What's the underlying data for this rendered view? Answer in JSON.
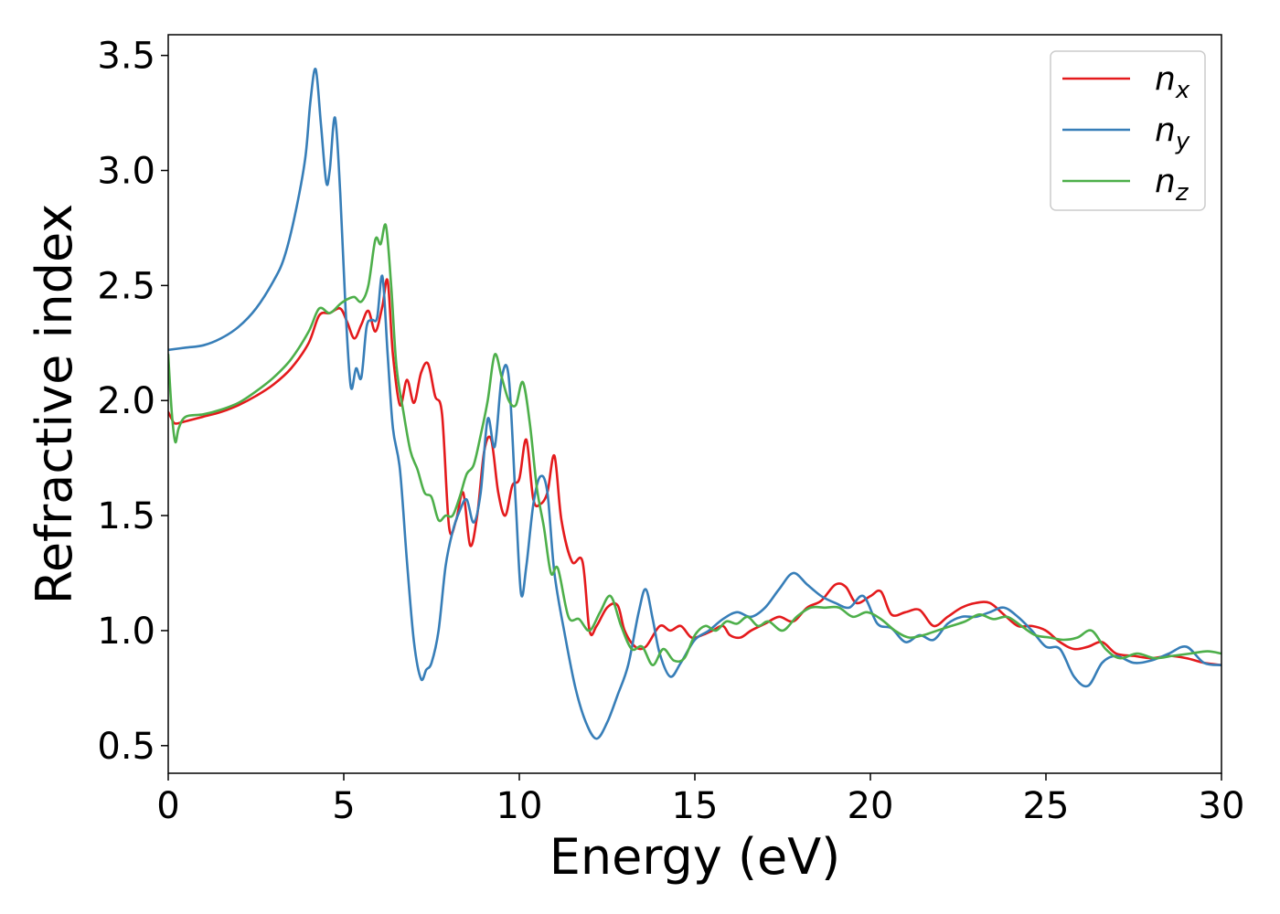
{
  "chart_data": {
    "type": "line",
    "title": "",
    "xlabel": "Energy (eV)",
    "ylabel": "Refractive index",
    "xlim": [
      0,
      30
    ],
    "ylim": [
      0.38,
      3.59
    ],
    "xticks": [
      0,
      5,
      10,
      15,
      20,
      25,
      30
    ],
    "xtick_labels": [
      "0",
      "5",
      "10",
      "15",
      "20",
      "25",
      "30"
    ],
    "yticks": [
      0.5,
      1.0,
      1.5,
      2.0,
      2.5,
      3.0,
      3.5
    ],
    "ytick_labels": [
      "0.5",
      "1.0",
      "1.5",
      "2.0",
      "2.5",
      "3.0",
      "3.5"
    ],
    "grid": false,
    "legend": "top-right",
    "series": [
      {
        "name": "n",
        "subscript": "x",
        "color": "#e41a1c",
        "x": [
          0,
          0.1,
          0.2,
          0.5,
          1,
          1.5,
          2,
          2.5,
          3,
          3.5,
          4,
          4.3,
          4.6,
          4.9,
          5.1,
          5.3,
          5.5,
          5.7,
          5.9,
          6.1,
          6.25,
          6.4,
          6.6,
          6.8,
          7.0,
          7.2,
          7.4,
          7.6,
          7.8,
          8.0,
          8.2,
          8.4,
          8.6,
          8.8,
          9.0,
          9.2,
          9.4,
          9.6,
          9.8,
          10.0,
          10.2,
          10.4,
          10.6,
          10.8,
          11.0,
          11.2,
          11.5,
          11.8,
          12.0,
          12.2,
          12.5,
          12.8,
          13.0,
          13.3,
          13.6,
          14.0,
          14.3,
          14.6,
          14.9,
          15.2,
          15.5,
          15.8,
          16.0,
          16.3,
          16.6,
          17.0,
          17.4,
          17.8,
          18.2,
          18.6,
          19.0,
          19.3,
          19.6,
          20.0,
          20.3,
          20.6,
          21.0,
          21.4,
          21.8,
          22.2,
          22.6,
          23.0,
          23.4,
          23.8,
          24.2,
          24.6,
          25.0,
          25.4,
          25.8,
          26.2,
          26.6,
          27.0,
          27.5,
          28.0,
          28.5,
          29.0,
          29.5,
          30
        ],
        "y": [
          1.95,
          1.92,
          1.9,
          1.91,
          1.93,
          1.95,
          1.98,
          2.02,
          2.07,
          2.14,
          2.25,
          2.37,
          2.38,
          2.4,
          2.34,
          2.27,
          2.33,
          2.39,
          2.3,
          2.41,
          2.52,
          2.2,
          1.98,
          2.09,
          1.99,
          2.12,
          2.16,
          2.02,
          1.94,
          1.45,
          1.48,
          1.6,
          1.37,
          1.5,
          1.78,
          1.83,
          1.6,
          1.5,
          1.63,
          1.66,
          1.83,
          1.57,
          1.55,
          1.6,
          1.76,
          1.48,
          1.3,
          1.3,
          1.0,
          1.02,
          1.1,
          1.11,
          1.0,
          0.93,
          0.93,
          1.02,
          1.0,
          1.02,
          0.97,
          0.98,
          1.0,
          1.02,
          0.98,
          0.97,
          1.0,
          1.03,
          1.06,
          1.04,
          1.1,
          1.13,
          1.2,
          1.19,
          1.12,
          1.15,
          1.17,
          1.07,
          1.08,
          1.09,
          1.02,
          1.06,
          1.1,
          1.12,
          1.12,
          1.07,
          1.02,
          1.02,
          1.0,
          0.95,
          0.92,
          0.93,
          0.95,
          0.9,
          0.89,
          0.88,
          0.89,
          0.88,
          0.86,
          0.85
        ]
      },
      {
        "name": "n",
        "subscript": "y",
        "color": "#377eb8",
        "x": [
          0,
          0.5,
          1,
          1.5,
          2,
          2.5,
          3,
          3.3,
          3.6,
          3.9,
          4.05,
          4.2,
          4.35,
          4.5,
          4.6,
          4.75,
          4.9,
          5.05,
          5.2,
          5.35,
          5.5,
          5.65,
          5.8,
          5.95,
          6.1,
          6.25,
          6.4,
          6.6,
          6.8,
          7.0,
          7.2,
          7.35,
          7.5,
          7.7,
          7.9,
          8.1,
          8.3,
          8.5,
          8.7,
          8.9,
          9.1,
          9.3,
          9.5,
          9.7,
          9.9,
          10.05,
          10.2,
          10.4,
          10.6,
          10.8,
          11.0,
          11.3,
          11.6,
          11.9,
          12.2,
          12.5,
          12.8,
          13.1,
          13.4,
          13.6,
          13.8,
          14.0,
          14.3,
          14.6,
          15.0,
          15.4,
          15.8,
          16.2,
          16.6,
          17.0,
          17.4,
          17.8,
          18.2,
          18.6,
          19.0,
          19.4,
          19.8,
          20.2,
          20.6,
          21.0,
          21.4,
          21.8,
          22.2,
          22.6,
          23.0,
          23.4,
          23.8,
          24.2,
          24.6,
          25.0,
          25.4,
          25.8,
          26.2,
          26.6,
          27.0,
          27.5,
          28.0,
          28.5,
          29.0,
          29.5,
          30
        ],
        "y": [
          2.22,
          2.23,
          2.24,
          2.27,
          2.32,
          2.4,
          2.52,
          2.62,
          2.8,
          3.05,
          3.3,
          3.44,
          3.2,
          2.95,
          3.0,
          3.23,
          2.9,
          2.4,
          2.06,
          2.14,
          2.1,
          2.32,
          2.35,
          2.36,
          2.54,
          2.2,
          1.88,
          1.7,
          1.3,
          0.95,
          0.79,
          0.83,
          0.86,
          1.0,
          1.28,
          1.43,
          1.52,
          1.57,
          1.47,
          1.6,
          1.92,
          1.8,
          2.1,
          2.1,
          1.55,
          1.16,
          1.28,
          1.55,
          1.67,
          1.6,
          1.25,
          0.98,
          0.75,
          0.6,
          0.53,
          0.6,
          0.72,
          0.85,
          1.08,
          1.18,
          1.05,
          0.9,
          0.8,
          0.86,
          0.96,
          1.0,
          1.05,
          1.08,
          1.06,
          1.1,
          1.18,
          1.25,
          1.2,
          1.15,
          1.12,
          1.1,
          1.15,
          1.03,
          1.01,
          0.95,
          0.98,
          0.96,
          1.03,
          1.06,
          1.06,
          1.08,
          1.1,
          1.06,
          1.0,
          0.93,
          0.92,
          0.8,
          0.76,
          0.86,
          0.89,
          0.86,
          0.87,
          0.9,
          0.93,
          0.86,
          0.85
        ]
      },
      {
        "name": "n",
        "subscript": "z",
        "color": "#4daf4a",
        "x": [
          0,
          0.1,
          0.2,
          0.3,
          0.5,
          1,
          1.5,
          2,
          2.5,
          3,
          3.5,
          4,
          4.3,
          4.6,
          4.9,
          5.1,
          5.3,
          5.5,
          5.7,
          5.9,
          6.05,
          6.2,
          6.35,
          6.5,
          6.7,
          6.9,
          7.1,
          7.3,
          7.5,
          7.7,
          7.9,
          8.1,
          8.3,
          8.5,
          8.7,
          8.9,
          9.1,
          9.3,
          9.5,
          9.7,
          9.9,
          10.1,
          10.3,
          10.5,
          10.7,
          10.9,
          11.1,
          11.4,
          11.7,
          12.0,
          12.3,
          12.6,
          12.9,
          13.2,
          13.5,
          13.8,
          14.1,
          14.4,
          14.7,
          15.0,
          15.3,
          15.6,
          15.9,
          16.2,
          16.5,
          16.8,
          17.1,
          17.5,
          17.9,
          18.3,
          18.7,
          19.1,
          19.5,
          19.9,
          20.3,
          20.7,
          21.1,
          21.5,
          21.9,
          22.3,
          22.7,
          23.1,
          23.5,
          23.9,
          24.3,
          24.7,
          25.1,
          25.5,
          25.9,
          26.3,
          26.7,
          27.1,
          27.6,
          28.1,
          28.6,
          29.1,
          29.6,
          30
        ],
        "y": [
          2.2,
          1.95,
          1.82,
          1.88,
          1.93,
          1.94,
          1.96,
          1.99,
          2.04,
          2.1,
          2.18,
          2.3,
          2.4,
          2.38,
          2.42,
          2.44,
          2.45,
          2.43,
          2.5,
          2.7,
          2.68,
          2.76,
          2.5,
          2.15,
          1.95,
          1.78,
          1.7,
          1.6,
          1.58,
          1.48,
          1.5,
          1.5,
          1.58,
          1.68,
          1.72,
          1.85,
          2.0,
          2.2,
          2.1,
          2.0,
          1.98,
          2.08,
          1.9,
          1.62,
          1.45,
          1.25,
          1.27,
          1.06,
          1.05,
          1.0,
          1.08,
          1.15,
          1.02,
          0.92,
          0.93,
          0.85,
          0.92,
          0.87,
          0.88,
          0.98,
          1.02,
          1.0,
          1.04,
          1.03,
          1.06,
          1.02,
          1.04,
          1.0,
          1.06,
          1.1,
          1.1,
          1.1,
          1.06,
          1.08,
          1.05,
          1.0,
          0.97,
          0.98,
          1.0,
          1.02,
          1.04,
          1.07,
          1.05,
          1.06,
          1.02,
          0.98,
          0.97,
          0.96,
          0.97,
          1.0,
          0.92,
          0.88,
          0.9,
          0.88,
          0.89,
          0.9,
          0.91,
          0.9
        ]
      }
    ]
  }
}
